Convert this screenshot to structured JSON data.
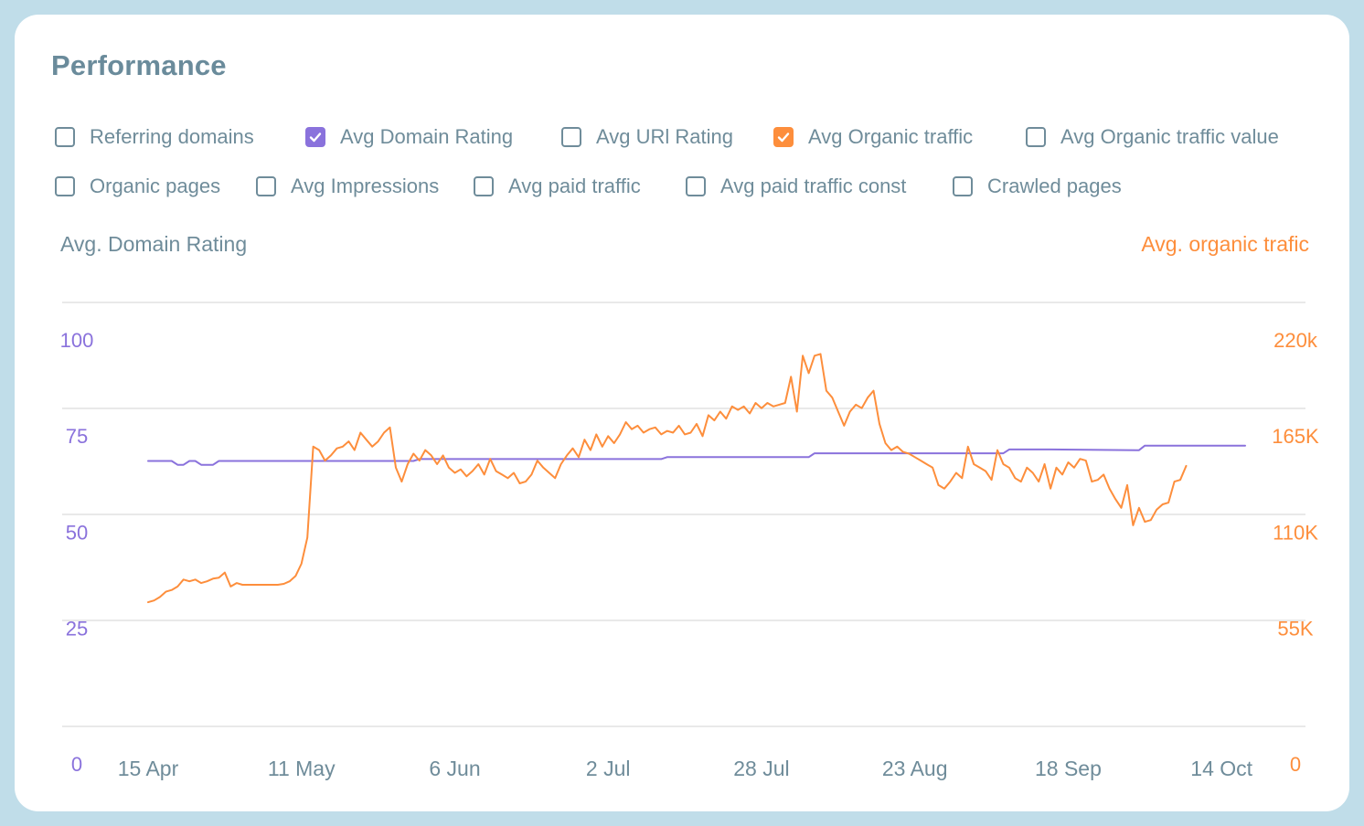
{
  "header": {
    "title": "Performance"
  },
  "colors": {
    "purple": "#8a72dc",
    "orange": "#fd8e3c",
    "slate": "#6f8c9a",
    "grid": "#dcdcdc"
  },
  "filters": [
    {
      "label": "Referring domains",
      "checked": false,
      "icon": "checkbox-empty"
    },
    {
      "label": "Avg Domain Rating",
      "checked": true,
      "color": "#8a72dc",
      "icon": "checkbox-checked"
    },
    {
      "label": "Avg URl Rating",
      "checked": false,
      "icon": "checkbox-empty"
    },
    {
      "label": "Avg Organic traffic",
      "checked": true,
      "color": "#fd8e3c",
      "icon": "checkbox-checked"
    },
    {
      "label": "Avg Organic traffic value",
      "checked": false,
      "icon": "checkbox-empty"
    },
    {
      "label": "Organic pages",
      "checked": false,
      "icon": "checkbox-empty"
    },
    {
      "label": "Avg Impressions",
      "checked": false,
      "icon": "checkbox-empty"
    },
    {
      "label": "Avg paid traffic",
      "checked": false,
      "icon": "checkbox-empty"
    },
    {
      "label": "Avg paid traffic const",
      "checked": false,
      "icon": "checkbox-empty"
    },
    {
      "label": "Crawled pages",
      "checked": false,
      "icon": "checkbox-empty"
    }
  ],
  "chart_data": {
    "type": "line",
    "title": "",
    "y_left_label": "Avg. Domain Rating",
    "y_right_label": "Avg. organic trafic",
    "y_left_ticks": [
      "0",
      "25",
      "50",
      "75",
      "100"
    ],
    "y_right_ticks": [
      "0",
      "55K",
      "110K",
      "165K",
      "220k"
    ],
    "y_left_range": [
      0,
      100
    ],
    "y_right_range": [
      0,
      220000
    ],
    "x_range": [
      "2024-04-15",
      "2024-10-18"
    ],
    "x_tick_labels": [
      "15 Apr",
      "11 May",
      "6 Jun",
      "2 Jul",
      "28 Jul",
      "23 Aug",
      "18 Sep",
      "14 Oct"
    ],
    "x_ticks": [
      "2024-04-15",
      "2024-05-11",
      "2024-06-06",
      "2024-07-02",
      "2024-07-28",
      "2024-08-23",
      "2024-09-18",
      "2024-10-14"
    ],
    "grid": true,
    "series": [
      {
        "name": "Avg Domain Rating",
        "axis": "left",
        "color": "#8a72dc",
        "points": [
          [
            "2024-04-15",
            69
          ],
          [
            "2024-04-19",
            69
          ],
          [
            "2024-04-20",
            68
          ],
          [
            "2024-04-21",
            68
          ],
          [
            "2024-04-22",
            69
          ],
          [
            "2024-04-23",
            69
          ],
          [
            "2024-04-24",
            68
          ],
          [
            "2024-04-26",
            68
          ],
          [
            "2024-04-27",
            69
          ],
          [
            "2024-05-10",
            69
          ],
          [
            "2024-05-30",
            69
          ],
          [
            "2024-05-31",
            69.5
          ],
          [
            "2024-06-23",
            69.5
          ],
          [
            "2024-07-11",
            69.5
          ],
          [
            "2024-07-12",
            70
          ],
          [
            "2024-08-05",
            70
          ],
          [
            "2024-08-06",
            71
          ],
          [
            "2024-08-28",
            71
          ],
          [
            "2024-09-07",
            71
          ],
          [
            "2024-09-08",
            72
          ],
          [
            "2024-09-15",
            72
          ],
          [
            "2024-09-30",
            71.8
          ],
          [
            "2024-10-01",
            73
          ],
          [
            "2024-10-18",
            73
          ]
        ]
      },
      {
        "name": "Avg Organic traffic",
        "axis": "right",
        "color": "#fd8e3c",
        "points": [
          [
            "2024-04-15",
            71000
          ],
          [
            "2024-04-16",
            72000
          ],
          [
            "2024-04-17",
            74000
          ],
          [
            "2024-04-18",
            77000
          ],
          [
            "2024-04-19",
            78000
          ],
          [
            "2024-04-20",
            80000
          ],
          [
            "2024-04-21",
            84000
          ],
          [
            "2024-04-22",
            83000
          ],
          [
            "2024-04-23",
            84000
          ],
          [
            "2024-04-24",
            82000
          ],
          [
            "2024-04-25",
            83000
          ],
          [
            "2024-04-26",
            84500
          ],
          [
            "2024-04-27",
            85000
          ],
          [
            "2024-04-28",
            88000
          ],
          [
            "2024-04-29",
            80000
          ],
          [
            "2024-04-30",
            82000
          ],
          [
            "2024-05-01",
            81000
          ],
          [
            "2024-05-07",
            81000
          ],
          [
            "2024-05-08",
            81500
          ],
          [
            "2024-05-09",
            83000
          ],
          [
            "2024-05-10",
            86000
          ],
          [
            "2024-05-11",
            93000
          ],
          [
            "2024-05-12",
            108000
          ],
          [
            "2024-05-13",
            160000
          ],
          [
            "2024-05-14",
            158000
          ],
          [
            "2024-05-15",
            152000
          ],
          [
            "2024-05-16",
            155000
          ],
          [
            "2024-05-17",
            159000
          ],
          [
            "2024-05-18",
            160000
          ],
          [
            "2024-05-19",
            163000
          ],
          [
            "2024-05-20",
            158000
          ],
          [
            "2024-05-21",
            168000
          ],
          [
            "2024-05-22",
            164000
          ],
          [
            "2024-05-23",
            160000
          ],
          [
            "2024-05-24",
            163000
          ],
          [
            "2024-05-25",
            168000
          ],
          [
            "2024-05-26",
            171000
          ],
          [
            "2024-05-27",
            148000
          ],
          [
            "2024-05-28",
            140000
          ],
          [
            "2024-05-29",
            150000
          ],
          [
            "2024-05-30",
            156000
          ],
          [
            "2024-05-31",
            152000
          ],
          [
            "2024-06-01",
            158000
          ],
          [
            "2024-06-02",
            155000
          ],
          [
            "2024-06-03",
            150000
          ],
          [
            "2024-06-04",
            155000
          ],
          [
            "2024-06-05",
            148000
          ],
          [
            "2024-06-06",
            145000
          ],
          [
            "2024-06-07",
            147000
          ],
          [
            "2024-06-08",
            143000
          ],
          [
            "2024-06-09",
            146000
          ],
          [
            "2024-06-10",
            150000
          ],
          [
            "2024-06-11",
            144000
          ],
          [
            "2024-06-12",
            153000
          ],
          [
            "2024-06-13",
            146000
          ],
          [
            "2024-06-14",
            144000
          ],
          [
            "2024-06-15",
            142000
          ],
          [
            "2024-06-16",
            145000
          ],
          [
            "2024-06-17",
            139000
          ],
          [
            "2024-06-18",
            140000
          ],
          [
            "2024-06-19",
            144000
          ],
          [
            "2024-06-20",
            152000
          ],
          [
            "2024-06-21",
            148000
          ],
          [
            "2024-06-22",
            145000
          ],
          [
            "2024-06-23",
            142000
          ],
          [
            "2024-06-24",
            150000
          ],
          [
            "2024-06-25",
            155000
          ],
          [
            "2024-06-26",
            159000
          ],
          [
            "2024-06-27",
            154000
          ],
          [
            "2024-06-28",
            164000
          ],
          [
            "2024-06-29",
            158000
          ],
          [
            "2024-06-30",
            167000
          ],
          [
            "2024-07-01",
            160000
          ],
          [
            "2024-07-02",
            166000
          ],
          [
            "2024-07-03",
            162000
          ],
          [
            "2024-07-04",
            167000
          ],
          [
            "2024-07-05",
            174000
          ],
          [
            "2024-07-06",
            170000
          ],
          [
            "2024-07-07",
            172000
          ],
          [
            "2024-07-08",
            168000
          ],
          [
            "2024-07-09",
            170000
          ],
          [
            "2024-07-10",
            171000
          ],
          [
            "2024-07-11",
            167000
          ],
          [
            "2024-07-12",
            169000
          ],
          [
            "2024-07-13",
            168000
          ],
          [
            "2024-07-14",
            172000
          ],
          [
            "2024-07-15",
            167000
          ],
          [
            "2024-07-16",
            168000
          ],
          [
            "2024-07-17",
            173000
          ],
          [
            "2024-07-18",
            166000
          ],
          [
            "2024-07-19",
            178000
          ],
          [
            "2024-07-20",
            175000
          ],
          [
            "2024-07-21",
            180000
          ],
          [
            "2024-07-22",
            176000
          ],
          [
            "2024-07-23",
            183000
          ],
          [
            "2024-07-24",
            181000
          ],
          [
            "2024-07-25",
            183000
          ],
          [
            "2024-07-26",
            179000
          ],
          [
            "2024-07-27",
            185000
          ],
          [
            "2024-07-28",
            182000
          ],
          [
            "2024-07-29",
            185000
          ],
          [
            "2024-07-30",
            183000
          ],
          [
            "2024-07-31",
            184000
          ],
          [
            "2024-08-01",
            185000
          ],
          [
            "2024-08-02",
            200000
          ],
          [
            "2024-08-03",
            180000
          ],
          [
            "2024-08-04",
            212000
          ],
          [
            "2024-08-05",
            202000
          ],
          [
            "2024-08-06",
            212000
          ],
          [
            "2024-08-07",
            213000
          ],
          [
            "2024-08-08",
            192000
          ],
          [
            "2024-08-09",
            188000
          ],
          [
            "2024-08-10",
            180000
          ],
          [
            "2024-08-11",
            172000
          ],
          [
            "2024-08-12",
            180000
          ],
          [
            "2024-08-13",
            184000
          ],
          [
            "2024-08-14",
            182000
          ],
          [
            "2024-08-15",
            188000
          ],
          [
            "2024-08-16",
            192000
          ],
          [
            "2024-08-17",
            173000
          ],
          [
            "2024-08-18",
            162000
          ],
          [
            "2024-08-19",
            158000
          ],
          [
            "2024-08-20",
            160000
          ],
          [
            "2024-08-21",
            157000
          ],
          [
            "2024-08-22",
            156000
          ],
          [
            "2024-08-23",
            154000
          ],
          [
            "2024-08-24",
            152000
          ],
          [
            "2024-08-25",
            150000
          ],
          [
            "2024-08-26",
            148000
          ],
          [
            "2024-08-27",
            138000
          ],
          [
            "2024-08-28",
            136000
          ],
          [
            "2024-08-29",
            140000
          ],
          [
            "2024-08-30",
            145000
          ],
          [
            "2024-08-31",
            142000
          ],
          [
            "2024-09-01",
            160000
          ],
          [
            "2024-09-02",
            150000
          ],
          [
            "2024-09-03",
            148000
          ],
          [
            "2024-09-04",
            146000
          ],
          [
            "2024-09-05",
            141000
          ],
          [
            "2024-09-06",
            158000
          ],
          [
            "2024-09-07",
            150000
          ],
          [
            "2024-09-08",
            148000
          ],
          [
            "2024-09-09",
            142000
          ],
          [
            "2024-09-10",
            140000
          ],
          [
            "2024-09-11",
            148000
          ],
          [
            "2024-09-12",
            145000
          ],
          [
            "2024-09-13",
            140000
          ],
          [
            "2024-09-14",
            150000
          ],
          [
            "2024-09-15",
            136000
          ],
          [
            "2024-09-16",
            148000
          ],
          [
            "2024-09-17",
            144000
          ],
          [
            "2024-09-18",
            151000
          ],
          [
            "2024-09-19",
            148000
          ],
          [
            "2024-09-20",
            153000
          ],
          [
            "2024-09-21",
            152000
          ],
          [
            "2024-09-22",
            140000
          ],
          [
            "2024-09-23",
            141000
          ],
          [
            "2024-09-24",
            144000
          ],
          [
            "2024-09-25",
            136000
          ],
          [
            "2024-09-26",
            130000
          ],
          [
            "2024-09-27",
            125000
          ],
          [
            "2024-09-28",
            138000
          ],
          [
            "2024-09-29",
            115000
          ],
          [
            "2024-09-30",
            125000
          ],
          [
            "2024-10-01",
            117000
          ],
          [
            "2024-10-02",
            118000
          ],
          [
            "2024-10-03",
            124000
          ],
          [
            "2024-10-04",
            127000
          ],
          [
            "2024-10-05",
            128000
          ],
          [
            "2024-10-06",
            140000
          ],
          [
            "2024-10-07",
            141000
          ],
          [
            "2024-10-08",
            149000
          ]
        ]
      }
    ]
  }
}
